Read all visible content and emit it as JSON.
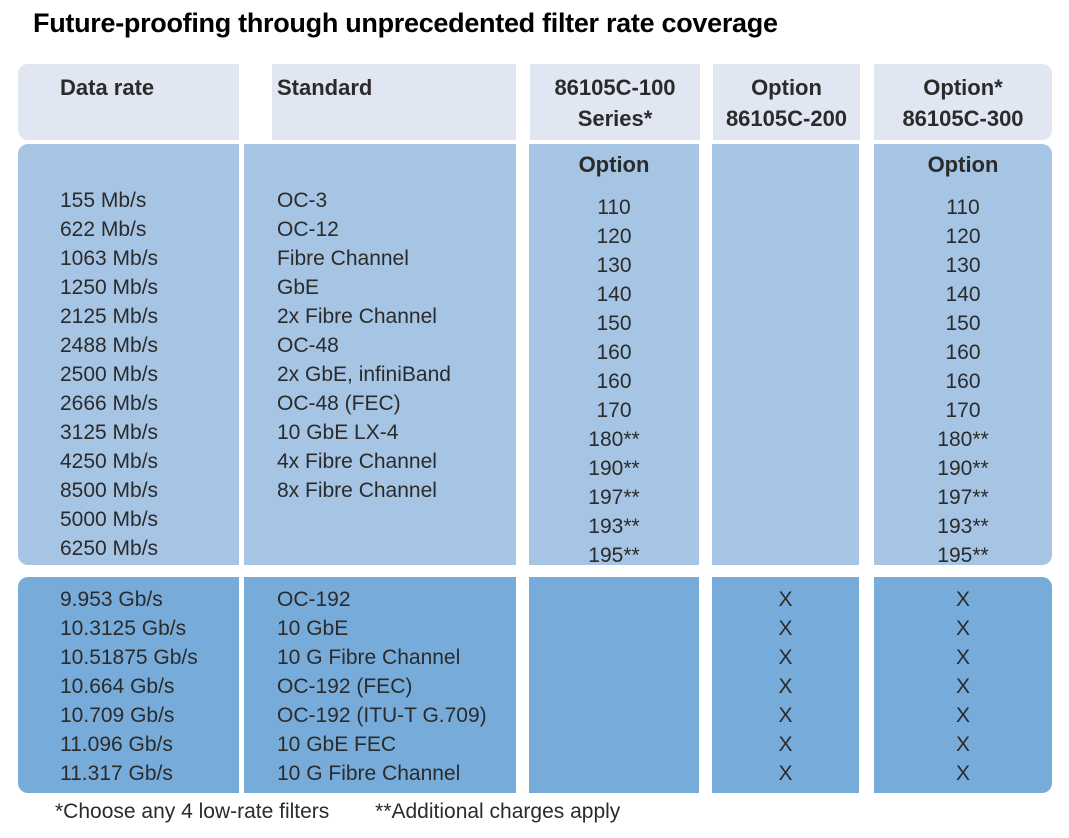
{
  "title": "Future-proofing through unprecedented filter rate coverage",
  "table": {
    "header": {
      "data_rate": "Data rate",
      "standard": "Standard",
      "col100_line1": "86105C-100",
      "col100_line2": "Series*",
      "col200_line1": "Option",
      "col200_line2": "86105C-200",
      "col300_line1": "Option*",
      "col300_line2": "86105C-300"
    },
    "low_rate": {
      "option_label_100": "Option",
      "option_label_300": "Option",
      "rows": [
        {
          "rate": "155 Mb/s",
          "standard": "OC-3",
          "opt100": "110",
          "opt200": "",
          "opt300": "110"
        },
        {
          "rate": "622 Mb/s",
          "standard": "OC-12",
          "opt100": "120",
          "opt200": "",
          "opt300": "120"
        },
        {
          "rate": "1063 Mb/s",
          "standard": "Fibre Channel",
          "opt100": "130",
          "opt200": "",
          "opt300": "130"
        },
        {
          "rate": "1250 Mb/s",
          "standard": "GbE",
          "opt100": "140",
          "opt200": "",
          "opt300": "140"
        },
        {
          "rate": "2125 Mb/s",
          "standard": "2x Fibre Channel",
          "opt100": "150",
          "opt200": "",
          "opt300": "150"
        },
        {
          "rate": "2488 Mb/s",
          "standard": "OC-48",
          "opt100": "160",
          "opt200": "",
          "opt300": "160"
        },
        {
          "rate": "2500 Mb/s",
          "standard": "2x GbE, infiniBand",
          "opt100": "160",
          "opt200": "",
          "opt300": "160"
        },
        {
          "rate": "2666 Mb/s",
          "standard": "OC-48 (FEC)",
          "opt100": "170",
          "opt200": "",
          "opt300": "170"
        },
        {
          "rate": "3125 Mb/s",
          "standard": "10 GbE LX-4",
          "opt100": "180**",
          "opt200": "",
          "opt300": "180**"
        },
        {
          "rate": "4250 Mb/s",
          "standard": "4x Fibre Channel",
          "opt100": "190**",
          "opt200": "",
          "opt300": "190**"
        },
        {
          "rate": "8500 Mb/s",
          "standard": "8x Fibre Channel",
          "opt100": "197**",
          "opt200": "",
          "opt300": "197**"
        },
        {
          "rate": "5000 Mb/s",
          "standard": "",
          "opt100": "193**",
          "opt200": "",
          "opt300": "193**"
        },
        {
          "rate": "6250 Mb/s",
          "standard": "",
          "opt100": "195**",
          "opt200": "",
          "opt300": "195**"
        }
      ]
    },
    "high_rate": {
      "rows": [
        {
          "rate": "9.953 Gb/s",
          "standard": "OC-192",
          "opt100": "",
          "opt200": "X",
          "opt300": "X"
        },
        {
          "rate": "10.3125 Gb/s",
          "standard": "10 GbE",
          "opt100": "",
          "opt200": "X",
          "opt300": "X"
        },
        {
          "rate": "10.51875 Gb/s",
          "standard": "10 G Fibre Channel",
          "opt100": "",
          "opt200": "X",
          "opt300": "X"
        },
        {
          "rate": "10.664 Gb/s",
          "standard": "OC-192 (FEC)",
          "opt100": "",
          "opt200": "X",
          "opt300": "X"
        },
        {
          "rate": "10.709 Gb/s",
          "standard": "OC-192 (ITU-T G.709)",
          "opt100": "",
          "opt200": "X",
          "opt300": "X"
        },
        {
          "rate": "11.096 Gb/s",
          "standard": "10 GbE FEC",
          "opt100": "",
          "opt200": "X",
          "opt300": "X"
        },
        {
          "rate": "11.317 Gb/s",
          "standard": "10 G Fibre Channel",
          "opt100": "",
          "opt200": "X",
          "opt300": "X"
        }
      ]
    }
  },
  "footnotes": {
    "choose": "*Choose any 4 low-rate filters",
    "additional": "**Additional charges apply"
  },
  "colors": {
    "header_bg": "#e0e6f2",
    "low_rate_bg": "#a6c4e3",
    "high_rate_bg": "#77abd9",
    "text": "#2b2b2b"
  }
}
